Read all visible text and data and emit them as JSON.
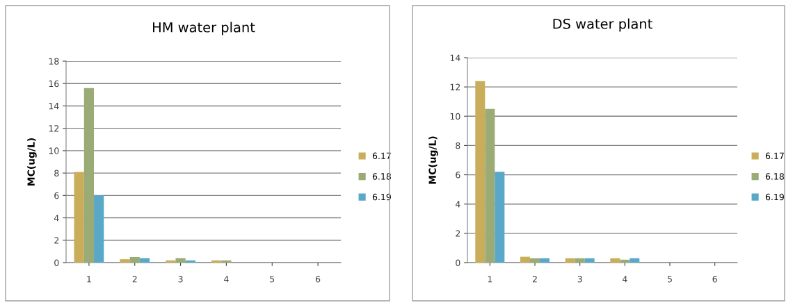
{
  "chart_data": [
    {
      "type": "bar",
      "title": "HM water plant",
      "ylabel": "MC(ug/L)",
      "categories": [
        "1",
        "2",
        "3",
        "4",
        "5",
        "6"
      ],
      "ylim": [
        0,
        18
      ],
      "yticks": [
        0,
        2,
        4,
        6,
        8,
        10,
        12,
        14,
        16,
        18
      ],
      "grid": "y",
      "legend": "right",
      "series": [
        {
          "name": "6.17",
          "color": "#c9ad5a",
          "values": [
            8.1,
            0.3,
            0.2,
            0.2,
            0,
            0
          ]
        },
        {
          "name": "6.18",
          "color": "#9aab76",
          "values": [
            15.6,
            0.5,
            0.4,
            0.2,
            0,
            0
          ]
        },
        {
          "name": "6.19",
          "color": "#5aa8c8",
          "values": [
            6.0,
            0.4,
            0.2,
            0,
            0,
            0
          ]
        }
      ]
    },
    {
      "type": "bar",
      "title": "DS water plant",
      "ylabel": "MC(ug/L)",
      "categories": [
        "1",
        "2",
        "3",
        "4",
        "5",
        "6"
      ],
      "ylim": [
        0,
        14
      ],
      "yticks": [
        0,
        2,
        4,
        6,
        8,
        10,
        12,
        14
      ],
      "grid": "y",
      "legend": "right",
      "series": [
        {
          "name": "6.17",
          "color": "#c9ad5a",
          "values": [
            12.4,
            0.4,
            0.3,
            0.3,
            0,
            0
          ]
        },
        {
          "name": "6.18",
          "color": "#9aab76",
          "values": [
            10.5,
            0.3,
            0.3,
            0.2,
            0,
            0
          ]
        },
        {
          "name": "6.19",
          "color": "#5aa8c8",
          "values": [
            6.2,
            0.3,
            0.3,
            0.3,
            0,
            0
          ]
        }
      ]
    }
  ]
}
